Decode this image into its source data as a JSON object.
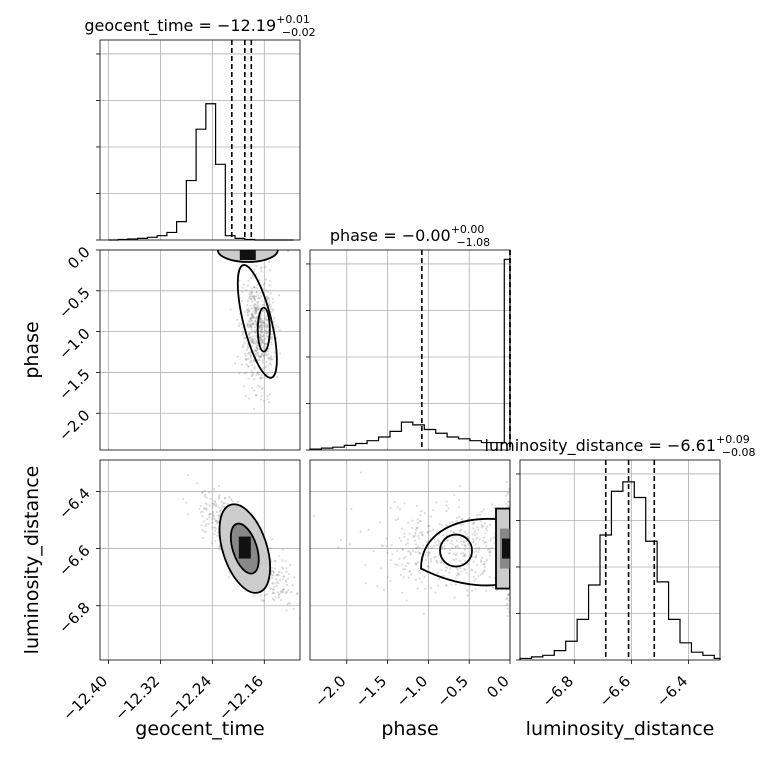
{
  "chart_data": {
    "type": "corner",
    "parameters": [
      {
        "name": "geocent_time",
        "axis_label": "geocent_time",
        "title_prefix": "geocent_time = ",
        "median": "−12.19",
        "upper": "+0.01",
        "lower": "−0.02",
        "quantiles": [
          -12.21,
          -12.19,
          -12.18
        ],
        "range": [
          -12.413,
          -12.105
        ],
        "ticks": [
          -12.4,
          -12.32,
          -12.24,
          -12.16
        ],
        "tick_labels": [
          "−12.40",
          "−12.32",
          "−12.24",
          "−12.16"
        ],
        "hist_bins": [
          -12.4,
          -12.385,
          -12.37,
          -12.355,
          -12.34,
          -12.325,
          -12.31,
          -12.295,
          -12.28,
          -12.265,
          -12.25,
          -12.235,
          -12.22,
          -12.205,
          -12.19,
          -12.175,
          -12.16,
          -12.145,
          -12.13,
          -12.115
        ],
        "hist_counts": [
          0,
          1,
          2,
          3,
          5,
          8,
          14,
          34,
          110,
          205,
          252,
          140,
          8,
          3,
          1,
          0,
          0,
          0,
          0
        ],
        "hist_max": 370
      },
      {
        "name": "phase",
        "axis_label": "phase",
        "title_prefix": "phase = ",
        "median": "−0.00",
        "upper": "+0.00",
        "lower": "−1.08",
        "quantiles": [
          -1.08,
          -0.0,
          0.0
        ],
        "range": [
          -2.45,
          0.0
        ],
        "ticks": [
          -2.0,
          -1.5,
          -1.0,
          -0.5,
          0.0
        ],
        "tick_labels": [
          "−2.0",
          "−1.5",
          "−1.0",
          "−0.5",
          "0.0"
        ],
        "hist_bins": [
          -2.45,
          -2.31,
          -2.17,
          -2.03,
          -1.89,
          -1.75,
          -1.61,
          -1.47,
          -1.33,
          -1.19,
          -1.05,
          -0.91,
          -0.77,
          -0.63,
          -0.49,
          -0.35,
          -0.21,
          -0.07,
          0.0
        ],
        "hist_counts": [
          1,
          2,
          3,
          5,
          7,
          10,
          14,
          20,
          30,
          27,
          22,
          18,
          14,
          12,
          10,
          8,
          8,
          205
        ],
        "hist_max": 215
      },
      {
        "name": "luminosity_distance",
        "axis_label": "luminosity_distance",
        "title_prefix": "luminosity_distance = ",
        "median": "−6.61",
        "upper": "+0.09",
        "lower": "−0.08",
        "quantiles": [
          -6.69,
          -6.61,
          -6.52
        ],
        "range": [
          -6.99,
          -6.29
        ],
        "ticks": [
          -6.8,
          -6.6,
          -6.4
        ],
        "tick_labels": [
          "−6.8",
          "−6.6",
          "−6.4"
        ],
        "hist_bins": [
          -6.99,
          -6.95,
          -6.91,
          -6.87,
          -6.83,
          -6.79,
          -6.75,
          -6.71,
          -6.67,
          -6.63,
          -6.59,
          -6.55,
          -6.51,
          -6.47,
          -6.43,
          -6.39,
          -6.35,
          -6.31,
          -6.29
        ],
        "hist_counts": [
          1,
          2,
          3,
          6,
          12,
          26,
          48,
          80,
          108,
          114,
          104,
          76,
          50,
          26,
          11,
          5,
          3,
          1
        ],
        "hist_max": 128
      }
    ],
    "phase_ylabel_ticks": [
      0.0,
      -0.5,
      -1.0,
      -1.5,
      -2.0
    ],
    "phase_ylabel_tick_labels": [
      "0.0",
      "−0.5",
      "−1.0",
      "−1.5",
      "−2.0"
    ],
    "ld_ylabel_ticks": [
      -6.4,
      -6.6,
      -6.8
    ],
    "ld_ylabel_tick_labels": [
      "−6.4",
      "−6.6",
      "−6.8"
    ],
    "grid": true,
    "colors": {
      "line": "#000000",
      "points": "#808080",
      "density_dark": "#111111",
      "density_mid": "#888888",
      "density_light": "#cccccc",
      "grid": "#b0b0b0"
    }
  }
}
